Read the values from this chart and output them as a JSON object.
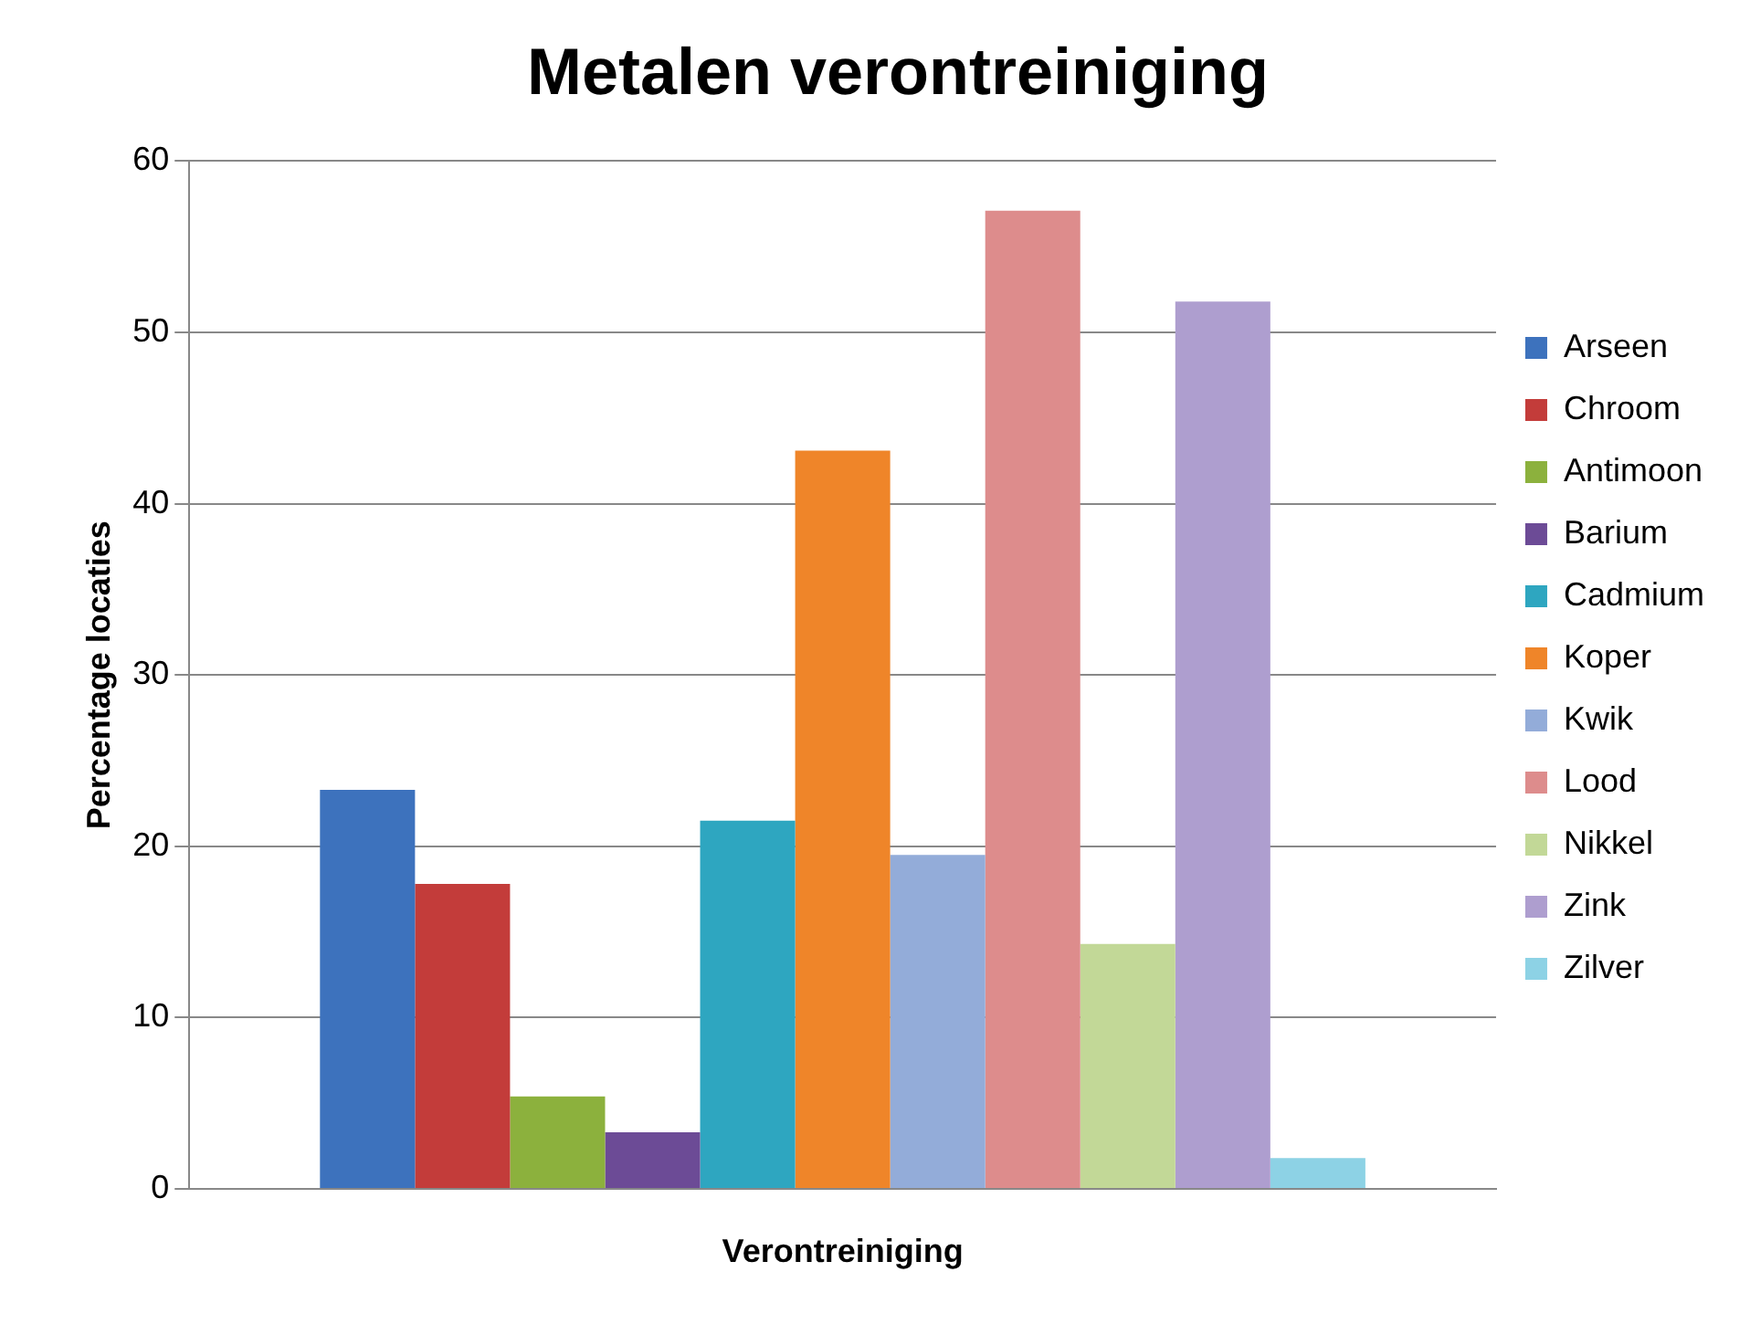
{
  "chart_data": {
    "type": "bar",
    "title": "Metalen verontreiniging",
    "xlabel": "Verontreiniging",
    "ylabel": "Percentage locaties",
    "categories": [
      null
    ],
    "series": [
      {
        "name": "Arseen",
        "color": "#3d72bd",
        "values": [
          23.3
        ]
      },
      {
        "name": "Chroom",
        "color": "#c33c3a",
        "values": [
          17.8
        ]
      },
      {
        "name": "Antimoon",
        "color": "#8cb13d",
        "values": [
          5.4
        ]
      },
      {
        "name": "Barium",
        "color": "#6c4b96",
        "values": [
          3.3
        ]
      },
      {
        "name": "Cadmium",
        "color": "#2ea6c0",
        "values": [
          21.5
        ]
      },
      {
        "name": "Koper",
        "color": "#ef8529",
        "values": [
          43.1
        ]
      },
      {
        "name": "Kwik",
        "color": "#93acd9",
        "values": [
          19.5
        ]
      },
      {
        "name": "Lood",
        "color": "#dd8c8c",
        "values": [
          57.1
        ]
      },
      {
        "name": "Nikkel",
        "color": "#c2d897",
        "values": [
          14.3
        ]
      },
      {
        "name": "Zink",
        "color": "#ae9ecf",
        "values": [
          51.8
        ]
      },
      {
        "name": "Zilver",
        "color": "#8dd2e5",
        "values": [
          1.8
        ]
      }
    ],
    "ylim": [
      0,
      60
    ],
    "yticks": [
      0,
      10,
      20,
      30,
      40,
      50,
      60
    ],
    "grid": "y",
    "legend": "right"
  }
}
